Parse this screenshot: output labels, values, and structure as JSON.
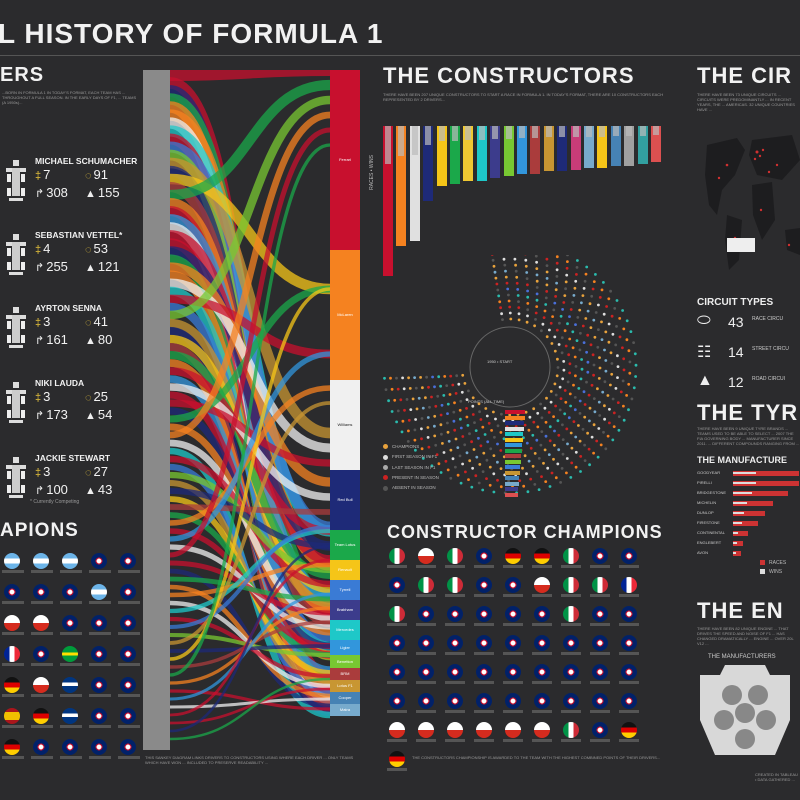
{
  "title": "L HISTORY OF FORMULA 1",
  "drivers_section": {
    "heading": "ERS",
    "intro": "...BORN IN FORMULA 1 IN TODAY'S FORMAT, EACH TEAM HAS ... THROUGHOUT A FULL SEASON. IN THE EARLY DAYS OF F1, ... TEAMS (A 1950s)...",
    "drivers": [
      {
        "name": "MICHAEL SCHUMACHER",
        "titles": "7",
        "wins": "91",
        "starts": "308",
        "poles": "155"
      },
      {
        "name": "SEBASTIAN VETTEL",
        "titles": "4",
        "wins": "53",
        "starts": "255",
        "poles": "121",
        "marker": "*"
      },
      {
        "name": "AYRTON SENNA",
        "titles": "3",
        "wins": "41",
        "starts": "161",
        "poles": "80"
      },
      {
        "name": "NIKI LAUDA",
        "titles": "3",
        "wins": "25",
        "starts": "173",
        "poles": "54"
      },
      {
        "name": "JACKIE STEWART",
        "titles": "3",
        "wins": "27",
        "starts": "100",
        "poles": "43"
      }
    ],
    "footnote": "* Currently Competing"
  },
  "champions_section": {
    "heading": "APIONS"
  },
  "constructors_section": {
    "heading": "THE CONSTRUCTORS",
    "intro": "THERE HAVE BEEN 207 UNIQUE CONSTRUCTORS TO START A RACE IN FORMULA 1. IN TODAY'S FORMAT, THERE ARE 10 CONSTRUCTORS EACH REPRESENTED BY 2 DRIVERS...",
    "axis_label": "RACES • WINS",
    "spiral_labels": {
      "start": "1950 • START",
      "points": "POINTS (ALL TIME)"
    },
    "legend": [
      {
        "label": "CHAMPIONS",
        "color": "#e8a23c"
      },
      {
        "label": "FIRST SEASON IN F1",
        "color": "#dddddd"
      },
      {
        "label": "LAST SEASON IN F1",
        "color": "#aaaaaa"
      },
      {
        "label": "PRESENT IN SEASON",
        "color": "#cc2222"
      },
      {
        "label": "ABSENT IN SEASON",
        "color": "#555555"
      }
    ]
  },
  "constructor_champions_section": {
    "heading": "CONSTRUCTOR CHAMPIONS",
    "footer": "THE CONSTRUCTORS CHAMPIONSHIP IS AWARDED TO THE TEAM WITH THE HIGHEST COMBINED POINTS OF THEIR DRIVERS..."
  },
  "circuits_section": {
    "heading": "THE CIR",
    "intro": "THERE HAVE BEEN 73 UNIQUE CIRCUITS ... CIRCUITS WERE PREDOMINANTLY ... IN RECENT YEARS, THE ... AMERICAS. 32 UNIQUE COUNTRIES HAVE ...",
    "types_heading": "CIRCUIT TYPES",
    "types": [
      {
        "count": "43",
        "label": "RACE CIRCU"
      },
      {
        "count": "14",
        "label": "STREET CIRCU"
      },
      {
        "count": "12",
        "label": "ROAD CIRCUI"
      }
    ]
  },
  "tyres_section": {
    "heading": "THE TYR",
    "intro": "THERE HAVE BEEN 9 UNIQUE TYRE BRANDS ... TEAMS USED TO BE ABLE TO SELECT ... 2007 THE FIA GOVERNING BODY ... MANUFACTURER SINCE 2011. ... DIFFERENT COMPOUNDS RANGING FROM ...",
    "manufacturers_heading": "THE MANUFACTURE",
    "brands": [
      "GOODYEAR",
      "PIRELLI",
      "BRIDGESTONE",
      "MICHELIN",
      "DUNLOP",
      "FIRESTONE",
      "CONTINENTAL",
      "ENGLEBERT",
      "AVON"
    ],
    "legend": [
      {
        "label": "RACES",
        "color": "#cc3333"
      },
      {
        "label": "WINS",
        "color": "#dddddd"
      }
    ]
  },
  "engines_section": {
    "heading": "THE EN",
    "intro": "THERE HAVE BEEN 82 UNIQUE ENGINE ... THAT DRIVES THE SPEED AND NOISE OF F1 ... HAS CHANGED DRAMATICALLY ... ENGINE ... OVER 20L V12 ...",
    "manufacturers_heading": "THE MANUFACTURERS",
    "credit": "CREATED IN TABLEAU • DATA GATHERED ..."
  },
  "sankey": {
    "teams": [
      "Ferrari",
      "McLaren",
      "Williams",
      "Red Bull",
      "Team Lotus",
      "Renault",
      "Tyrrell",
      "Brabham",
      "Mercedes",
      "Ligier",
      "Benetton",
      "BRM",
      "Lotus F1",
      "Cooper",
      "Matra"
    ],
    "footer": "THIS SANKEY DIAGRAM LINKS DRIVERS TO CONSTRUCTORS USING WHERE EACH DRIVER ... ONLY TEAMS WHICH HAVE WON ... INCLUDED TO PRESERVE READABILITY ..."
  }
}
